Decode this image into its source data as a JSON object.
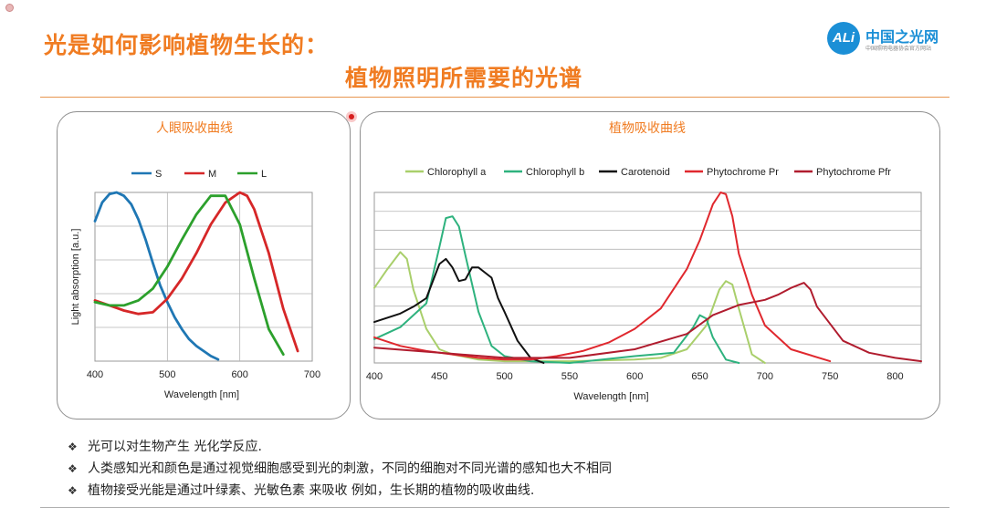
{
  "header": {
    "title_line1": "光是如何影响植物生长的：",
    "title_line2": "植物照明所需要的光谱"
  },
  "logo": {
    "mark": "ALi",
    "name": "中国之光网",
    "subtitle": "中国照明电器协会官方网站"
  },
  "bullets": [
    "光可以对生物产生 光化学反应.",
    "人类感知光和颜色是通过视觉细胞感受到光的刺激，不同的细胞对不同光谱的感知也大不相同",
    "植物接受光能是通过叶绿素、光敏色素 来吸收 例如，生长期的植物的吸收曲线."
  ],
  "bullet_symbol": "❖",
  "chart_data": [
    {
      "type": "line",
      "panel_title": "人眼吸收曲线",
      "title": "",
      "xlabel": "Wavelength [nm]",
      "ylabel": "Light absorption [a.u.]",
      "xlim": [
        400,
        700
      ],
      "ylim": [
        0,
        1
      ],
      "xticks": [
        400,
        500,
        600,
        700
      ],
      "grid": true,
      "legend_position": "top",
      "series": [
        {
          "name": "S",
          "color": "#1f77b4",
          "x": [
            400,
            410,
            420,
            430,
            440,
            450,
            460,
            470,
            480,
            490,
            500,
            510,
            520,
            530,
            540,
            550,
            560,
            570
          ],
          "y": [
            0.83,
            0.94,
            0.99,
            1.0,
            0.98,
            0.93,
            0.84,
            0.72,
            0.58,
            0.45,
            0.35,
            0.26,
            0.19,
            0.13,
            0.09,
            0.06,
            0.03,
            0.01
          ]
        },
        {
          "name": "M",
          "color": "#d62728",
          "x": [
            400,
            420,
            440,
            460,
            480,
            500,
            520,
            540,
            560,
            580,
            600,
            610,
            620,
            640,
            660,
            680
          ],
          "y": [
            0.36,
            0.33,
            0.3,
            0.28,
            0.29,
            0.37,
            0.49,
            0.64,
            0.81,
            0.94,
            1.0,
            0.98,
            0.9,
            0.64,
            0.31,
            0.06
          ]
        },
        {
          "name": "L",
          "color": "#2ca02c",
          "x": [
            400,
            420,
            440,
            460,
            480,
            500,
            520,
            540,
            560,
            580,
            600,
            620,
            640,
            660
          ],
          "y": [
            0.35,
            0.33,
            0.33,
            0.36,
            0.43,
            0.56,
            0.72,
            0.87,
            0.98,
            0.98,
            0.81,
            0.49,
            0.19,
            0.04
          ]
        }
      ]
    },
    {
      "type": "line",
      "panel_title": "植物吸收曲线",
      "title": "",
      "xlabel": "Wavelength [nm]",
      "ylabel": "",
      "xlim": [
        400,
        820
      ],
      "ylim": [
        0,
        1
      ],
      "xticks": [
        400,
        450,
        500,
        550,
        600,
        650,
        700,
        750,
        800
      ],
      "grid": true,
      "legend_position": "top",
      "series": [
        {
          "name": "Chlorophyll a",
          "color": "#a9cf6b",
          "x": [
            400,
            410,
            420,
            425,
            430,
            440,
            450,
            460,
            480,
            500,
            550,
            600,
            620,
            640,
            655,
            665,
            670,
            675,
            680,
            690,
            700
          ],
          "y": [
            0.44,
            0.55,
            0.65,
            0.61,
            0.43,
            0.2,
            0.08,
            0.05,
            0.02,
            0.01,
            0.01,
            0.02,
            0.03,
            0.08,
            0.22,
            0.43,
            0.48,
            0.46,
            0.32,
            0.05,
            0.0
          ]
        },
        {
          "name": "Chlorophyll b",
          "color": "#2eb27e",
          "x": [
            400,
            420,
            440,
            450,
            455,
            460,
            465,
            470,
            480,
            490,
            500,
            520,
            550,
            600,
            630,
            645,
            650,
            655,
            660,
            670,
            680
          ],
          "y": [
            0.14,
            0.21,
            0.35,
            0.68,
            0.85,
            0.86,
            0.8,
            0.63,
            0.3,
            0.1,
            0.04,
            0.01,
            0.0,
            0.04,
            0.06,
            0.21,
            0.28,
            0.26,
            0.15,
            0.02,
            0.0
          ]
        },
        {
          "name": "Carotenoid",
          "color": "#111111",
          "x": [
            400,
            420,
            430,
            440,
            450,
            455,
            460,
            465,
            470,
            475,
            480,
            485,
            490,
            495,
            500,
            510,
            520,
            530
          ],
          "y": [
            0.24,
            0.29,
            0.33,
            0.38,
            0.58,
            0.61,
            0.56,
            0.48,
            0.49,
            0.56,
            0.56,
            0.53,
            0.5,
            0.38,
            0.3,
            0.13,
            0.03,
            0.0
          ]
        },
        {
          "name": "Phytochrome Pr",
          "color": "#e0282e",
          "x": [
            400,
            420,
            440,
            460,
            480,
            500,
            520,
            540,
            560,
            580,
            600,
            620,
            640,
            650,
            660,
            666,
            670,
            675,
            680,
            690,
            700,
            720,
            750
          ],
          "y": [
            0.15,
            0.1,
            0.07,
            0.05,
            0.03,
            0.02,
            0.02,
            0.04,
            0.07,
            0.12,
            0.2,
            0.32,
            0.55,
            0.72,
            0.93,
            1.0,
            0.99,
            0.86,
            0.64,
            0.4,
            0.22,
            0.08,
            0.01
          ]
        },
        {
          "name": "Phytochrome Pfr",
          "color": "#b01c2e",
          "x": [
            400,
            450,
            500,
            550,
            600,
            640,
            660,
            680,
            700,
            710,
            720,
            730,
            735,
            740,
            760,
            780,
            800,
            820
          ],
          "y": [
            0.09,
            0.06,
            0.03,
            0.03,
            0.08,
            0.17,
            0.28,
            0.34,
            0.37,
            0.4,
            0.44,
            0.47,
            0.43,
            0.33,
            0.13,
            0.06,
            0.03,
            0.01
          ]
        }
      ]
    }
  ]
}
